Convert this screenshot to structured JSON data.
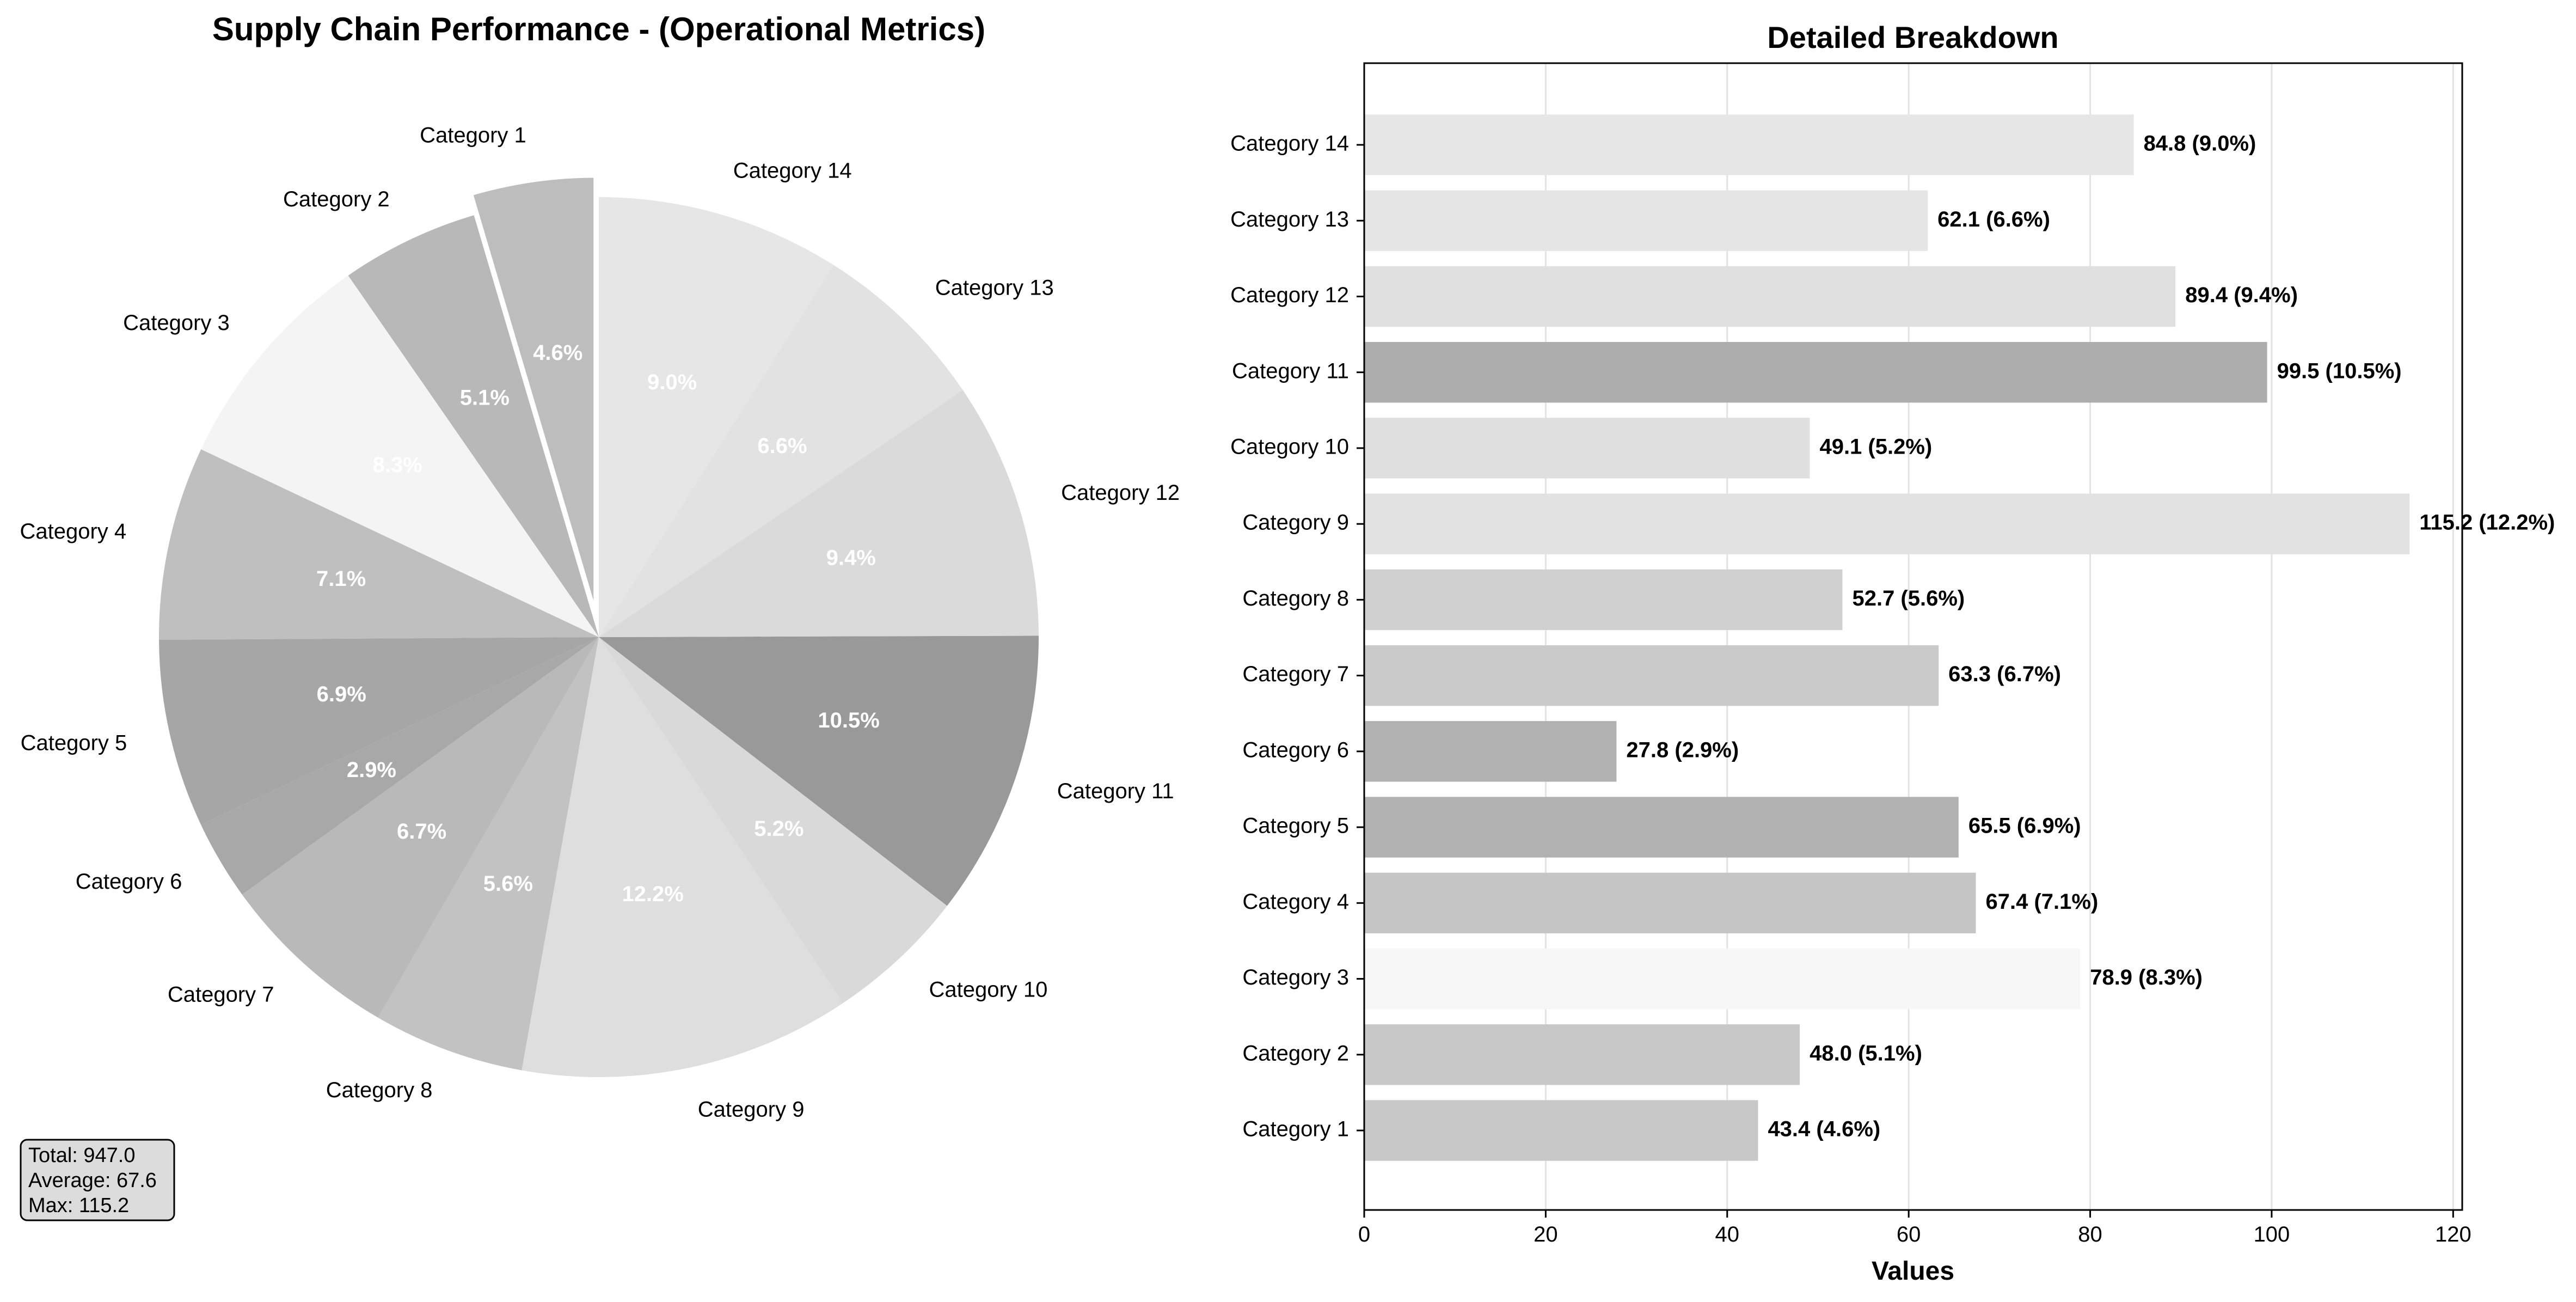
{
  "chart_data": [
    {
      "type": "pie",
      "title": "Supply Chain Performance - (Operational Metrics)",
      "categories": [
        "Category 1",
        "Category 2",
        "Category 3",
        "Category 4",
        "Category 5",
        "Category 6",
        "Category 7",
        "Category 8",
        "Category 9",
        "Category 10",
        "Category 11",
        "Category 12",
        "Category 13",
        "Category 14"
      ],
      "values": [
        43.4,
        48.0,
        78.9,
        67.4,
        65.5,
        27.8,
        63.3,
        52.7,
        115.2,
        49.1,
        99.5,
        89.4,
        62.1,
        84.8
      ],
      "percent_labels": [
        "4.6%",
        "5.1%",
        "8.3%",
        "7.1%",
        "6.9%",
        "2.9%",
        "6.7%",
        "5.6%",
        "12.2%",
        "5.2%",
        "10.5%",
        "9.4%",
        "6.6%",
        "9.0%"
      ],
      "colors": [
        "#bdbdbd",
        "#b8b8b8",
        "#f4f4f4",
        "#bfbfbf",
        "#a6a6a6",
        "#a8a8a8",
        "#b9b9b9",
        "#c2c2c2",
        "#dedede",
        "#d9d9d9",
        "#999999",
        "#dadada",
        "#e2e2e2",
        "#e6e6e6"
      ],
      "exploded": [
        "Category 1"
      ],
      "start_angle_deg": 90,
      "direction": "counterclockwise",
      "stats_box": [
        "Total: 947.0",
        "Average: 67.6",
        "Max: 115.2"
      ]
    },
    {
      "type": "bar",
      "orientation": "horizontal",
      "title": "Detailed Breakdown",
      "xlabel": "Values",
      "ylabel": "",
      "xlim": [
        0,
        121
      ],
      "xticks": [
        0,
        20,
        40,
        60,
        80,
        100,
        120
      ],
      "grid": "x",
      "categories": [
        "Category 1",
        "Category 2",
        "Category 3",
        "Category 4",
        "Category 5",
        "Category 6",
        "Category 7",
        "Category 8",
        "Category 9",
        "Category 10",
        "Category 11",
        "Category 12",
        "Category 13",
        "Category 14"
      ],
      "values": [
        43.4,
        48.0,
        78.9,
        67.4,
        65.5,
        27.8,
        63.3,
        52.7,
        115.2,
        49.1,
        99.5,
        89.4,
        62.1,
        84.8
      ],
      "data_labels": [
        "43.4 (4.6%)",
        "48.0 (5.1%)",
        "78.9 (8.3%)",
        "67.4 (7.1%)",
        "65.5 (6.9%)",
        "27.8 (2.9%)",
        "63.3 (6.7%)",
        "52.7 (5.6%)",
        "115.2 (12.2%)",
        "49.1 (5.2%)",
        "99.5 (10.5%)",
        "89.4 (9.4%)",
        "62.1 (6.6%)",
        "84.8 (9.0%)"
      ],
      "colors": [
        "#c8c8c8",
        "#c8c8c8",
        "#f7f7f7",
        "#c5c5c5",
        "#b1b1b1",
        "#b1b1b1",
        "#cacaca",
        "#d0d0d0",
        "#e2e2e2",
        "#dfdfdf",
        "#adadad",
        "#e0e0e0",
        "#e5e5e5",
        "#e6e6e6"
      ]
    }
  ]
}
